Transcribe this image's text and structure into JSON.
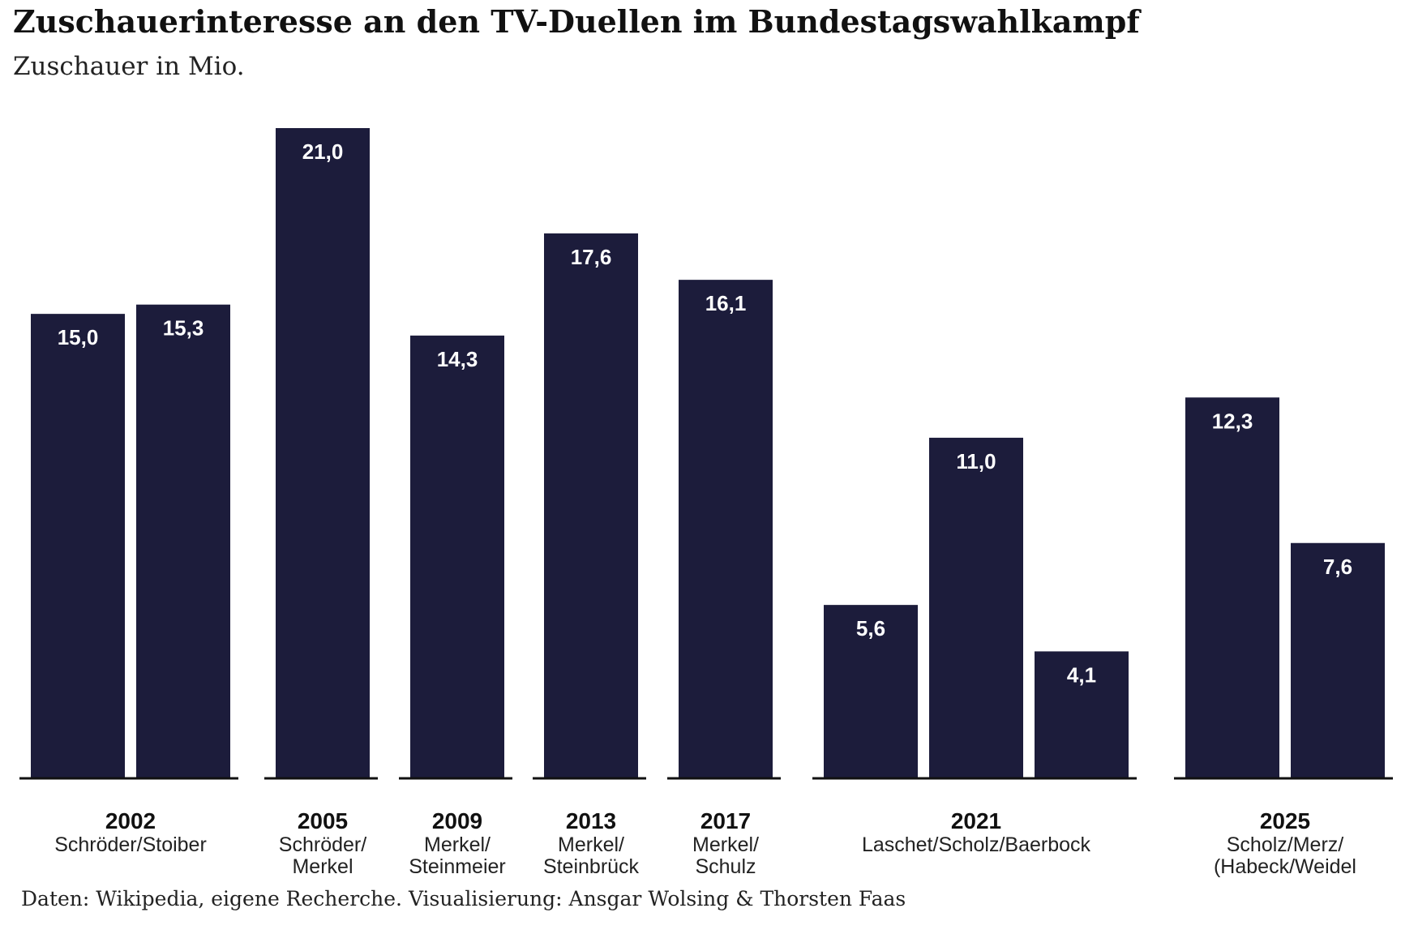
{
  "chart_data": {
    "type": "bar",
    "title": "Zuschauerinteresse an den TV-Duellen im Bundestagswahlkampf",
    "subtitle": "Zuschauer in Mio.",
    "source": "Daten: Wikipedia, eigene Recherche. Visualisierung: Ansgar Wolsing & Thorsten Faas",
    "ylim": [
      0,
      21.0
    ],
    "grid": false,
    "bar_color": "#1c1c3b",
    "label_color": "#ffffff",
    "groups": [
      {
        "year": "2002",
        "label_lines": [
          "Schröder/Stoiber"
        ],
        "values": [
          "15,0",
          "15,3"
        ],
        "value_numbers": [
          15.0,
          15.3
        ]
      },
      {
        "year": "2005",
        "label_lines": [
          "Schröder/",
          "Merkel"
        ],
        "values": [
          "21,0"
        ],
        "value_numbers": [
          21.0
        ]
      },
      {
        "year": "2009",
        "label_lines": [
          "Merkel/",
          "Steinmeier"
        ],
        "values": [
          "14,3"
        ],
        "value_numbers": [
          14.3
        ]
      },
      {
        "year": "2013",
        "label_lines": [
          "Merkel/",
          "Steinbrück"
        ],
        "values": [
          "17,6"
        ],
        "value_numbers": [
          17.6
        ]
      },
      {
        "year": "2017",
        "label_lines": [
          "Merkel/",
          "Schulz"
        ],
        "values": [
          "16,1"
        ],
        "value_numbers": [
          16.1
        ]
      },
      {
        "year": "2021",
        "label_lines": [
          "Laschet/Scholz/Baerbock"
        ],
        "values": [
          "5,6",
          "11,0",
          "4,1"
        ],
        "value_numbers": [
          5.6,
          11.0,
          4.1
        ]
      },
      {
        "year": "2025",
        "label_lines": [
          "Scholz/Merz/",
          "(Habeck/Weidel"
        ],
        "values": [
          "12,3",
          "7,6"
        ],
        "value_numbers": [
          12.3,
          7.6
        ]
      }
    ]
  }
}
